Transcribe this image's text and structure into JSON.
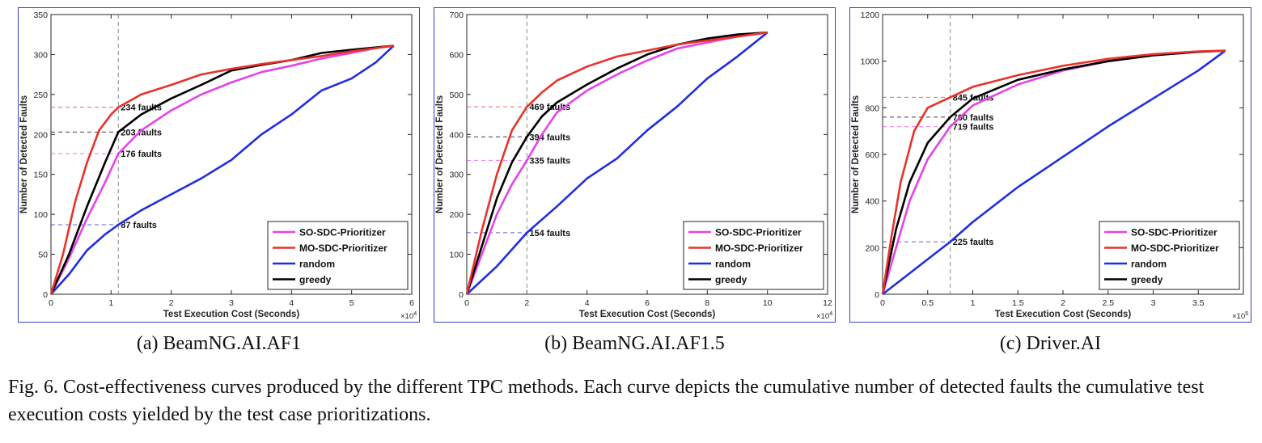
{
  "caption": {
    "label": "Fig. 6.",
    "text": "Cost-effectiveness curves produced by the different TPC methods. Each curve depicts the cumulative number of detected faults the cumulative test execution costs yielded by the test case prioritizations."
  },
  "colors": {
    "SO-SDC-Prioritizer": "#e443e9",
    "MO-SDC-Prioritizer": "#e8322b",
    "random": "#1f2fe0",
    "greedy": "#000000",
    "frame": "#3b3fbf"
  },
  "chart_data": [
    {
      "type": "line",
      "caption": "(a) BeamNG.AI.AF1",
      "xlabel": "Test Execution Cost (Seconds)",
      "ylabel": "Number of Detected Faults",
      "x_exponent": "×10^4",
      "xlim": [
        0,
        6
      ],
      "ylim": [
        0,
        350
      ],
      "xticks": [
        0,
        1,
        2,
        3,
        4,
        5,
        6
      ],
      "yticks": [
        0,
        50,
        100,
        150,
        200,
        250,
        300,
        350
      ],
      "grid": false,
      "legend_position": "bottom-right",
      "cutoff_x": 1.12,
      "series": [
        {
          "name": "SO-SDC-Prioritizer",
          "points": [
            [
              0,
              0
            ],
            [
              0.3,
              45
            ],
            [
              0.6,
              95
            ],
            [
              0.9,
              140
            ],
            [
              1.12,
              176
            ],
            [
              1.5,
              205
            ],
            [
              2.0,
              230
            ],
            [
              2.5,
              250
            ],
            [
              3.0,
              265
            ],
            [
              3.5,
              278
            ],
            [
              4.0,
              286
            ],
            [
              4.5,
              295
            ],
            [
              5.0,
              302
            ],
            [
              5.4,
              308
            ],
            [
              5.7,
              311
            ]
          ]
        },
        {
          "name": "MO-SDC-Prioritizer",
          "points": [
            [
              0,
              0
            ],
            [
              0.2,
              50
            ],
            [
              0.4,
              115
            ],
            [
              0.6,
              165
            ],
            [
              0.8,
              205
            ],
            [
              1.0,
              225
            ],
            [
              1.12,
              234
            ],
            [
              1.5,
              250
            ],
            [
              2.0,
              262
            ],
            [
              2.5,
              275
            ],
            [
              3.0,
              282
            ],
            [
              3.5,
              288
            ],
            [
              4.0,
              293
            ],
            [
              4.5,
              298
            ],
            [
              5.0,
              304
            ],
            [
              5.7,
              311
            ]
          ]
        },
        {
          "name": "random",
          "points": [
            [
              0,
              0
            ],
            [
              0.3,
              25
            ],
            [
              0.6,
              55
            ],
            [
              0.9,
              75
            ],
            [
              1.12,
              87
            ],
            [
              1.5,
              105
            ],
            [
              2.0,
              125
            ],
            [
              2.5,
              145
            ],
            [
              3.0,
              168
            ],
            [
              3.5,
              200
            ],
            [
              4.0,
              225
            ],
            [
              4.5,
              255
            ],
            [
              5.0,
              270
            ],
            [
              5.4,
              290
            ],
            [
              5.7,
              311
            ]
          ]
        },
        {
          "name": "greedy",
          "points": [
            [
              0,
              0
            ],
            [
              0.3,
              50
            ],
            [
              0.6,
              110
            ],
            [
              0.9,
              165
            ],
            [
              1.12,
              203
            ],
            [
              1.5,
              225
            ],
            [
              2.0,
              245
            ],
            [
              2.5,
              262
            ],
            [
              3.0,
              280
            ],
            [
              3.5,
              287
            ],
            [
              4.0,
              293
            ],
            [
              4.5,
              302
            ],
            [
              5.0,
              306
            ],
            [
              5.7,
              311
            ]
          ]
        }
      ],
      "annotations": [
        {
          "series": "MO-SDC-Prioritizer",
          "y": 234,
          "text": "234 faults"
        },
        {
          "series": "greedy",
          "y": 203,
          "text": "203 faults"
        },
        {
          "series": "SO-SDC-Prioritizer",
          "y": 176,
          "text": "176 faults"
        },
        {
          "series": "random",
          "y": 87,
          "text": "87 faults"
        }
      ]
    },
    {
      "type": "line",
      "caption": "(b) BeamNG.AI.AF1.5",
      "xlabel": "Test Execution Cost (Seconds)",
      "ylabel": "Number of Detected Faults",
      "x_exponent": "×10^4",
      "xlim": [
        0,
        12
      ],
      "ylim": [
        0,
        700
      ],
      "xticks": [
        0,
        2,
        4,
        6,
        8,
        10,
        12
      ],
      "yticks": [
        0,
        100,
        200,
        300,
        400,
        500,
        600,
        700
      ],
      "grid": false,
      "legend_position": "bottom-right",
      "cutoff_x": 2.0,
      "series": [
        {
          "name": "SO-SDC-Prioritizer",
          "points": [
            [
              0,
              0
            ],
            [
              0.5,
              100
            ],
            [
              1.0,
              200
            ],
            [
              1.5,
              275
            ],
            [
              2.0,
              335
            ],
            [
              2.5,
              400
            ],
            [
              3.0,
              455
            ],
            [
              4.0,
              510
            ],
            [
              5.0,
              550
            ],
            [
              6.0,
              585
            ],
            [
              7.0,
              615
            ],
            [
              8.0,
              630
            ],
            [
              9.0,
              645
            ],
            [
              10.0,
              655
            ]
          ]
        },
        {
          "name": "MO-SDC-Prioritizer",
          "points": [
            [
              0,
              0
            ],
            [
              0.5,
              160
            ],
            [
              1.0,
              300
            ],
            [
              1.5,
              410
            ],
            [
              2.0,
              469
            ],
            [
              2.5,
              505
            ],
            [
              3.0,
              535
            ],
            [
              4.0,
              570
            ],
            [
              5.0,
              595
            ],
            [
              6.0,
              610
            ],
            [
              7.0,
              625
            ],
            [
              8.0,
              635
            ],
            [
              9.0,
              645
            ],
            [
              10.0,
              655
            ]
          ]
        },
        {
          "name": "random",
          "points": [
            [
              0,
              0
            ],
            [
              1.0,
              70
            ],
            [
              2.0,
              154
            ],
            [
              3.0,
              220
            ],
            [
              4.0,
              290
            ],
            [
              5.0,
              340
            ],
            [
              6.0,
              410
            ],
            [
              7.0,
              470
            ],
            [
              8.0,
              540
            ],
            [
              9.0,
              595
            ],
            [
              10.0,
              655
            ]
          ]
        },
        {
          "name": "greedy",
          "points": [
            [
              0,
              0
            ],
            [
              0.5,
              120
            ],
            [
              1.0,
              240
            ],
            [
              1.5,
              330
            ],
            [
              2.0,
              394
            ],
            [
              2.5,
              445
            ],
            [
              3.0,
              480
            ],
            [
              4.0,
              525
            ],
            [
              5.0,
              565
            ],
            [
              6.0,
              600
            ],
            [
              7.0,
              625
            ],
            [
              8.0,
              640
            ],
            [
              9.0,
              650
            ],
            [
              10.0,
              655
            ]
          ]
        }
      ],
      "annotations": [
        {
          "series": "MO-SDC-Prioritizer",
          "y": 469,
          "text": "469 faults"
        },
        {
          "series": "greedy",
          "y": 394,
          "text": "394 faults"
        },
        {
          "series": "SO-SDC-Prioritizer",
          "y": 335,
          "text": "335 faults"
        },
        {
          "series": "random",
          "y": 154,
          "text": "154 faults"
        }
      ]
    },
    {
      "type": "line",
      "caption": "(c) Driver.AI",
      "xlabel": "Test Execution Cost (Seconds)",
      "ylabel": "Number of Detected Faults",
      "x_exponent": "×10^5",
      "xlim": [
        0,
        4
      ],
      "ylim": [
        0,
        1200
      ],
      "xticks": [
        0,
        0.5,
        1,
        1.5,
        2,
        2.5,
        3,
        3.5
      ],
      "yticks": [
        0,
        200,
        400,
        600,
        800,
        1000,
        1200
      ],
      "grid": false,
      "legend_position": "bottom-right",
      "cutoff_x": 0.75,
      "series": [
        {
          "name": "SO-SDC-Prioritizer",
          "points": [
            [
              0,
              0
            ],
            [
              0.15,
              200
            ],
            [
              0.3,
              400
            ],
            [
              0.5,
              580
            ],
            [
              0.75,
              719
            ],
            [
              1.0,
              810
            ],
            [
              1.5,
              900
            ],
            [
              2.0,
              960
            ],
            [
              2.5,
              1000
            ],
            [
              3.0,
              1025
            ],
            [
              3.5,
              1040
            ],
            [
              3.8,
              1045
            ]
          ]
        },
        {
          "name": "MO-SDC-Prioritizer",
          "points": [
            [
              0,
              0
            ],
            [
              0.1,
              250
            ],
            [
              0.2,
              480
            ],
            [
              0.35,
              700
            ],
            [
              0.5,
              800
            ],
            [
              0.75,
              845
            ],
            [
              1.0,
              890
            ],
            [
              1.5,
              940
            ],
            [
              2.0,
              980
            ],
            [
              2.5,
              1010
            ],
            [
              3.0,
              1030
            ],
            [
              3.5,
              1042
            ],
            [
              3.8,
              1045
            ]
          ]
        },
        {
          "name": "random",
          "points": [
            [
              0,
              0
            ],
            [
              0.3,
              90
            ],
            [
              0.75,
              225
            ],
            [
              1.0,
              310
            ],
            [
              1.5,
              460
            ],
            [
              2.0,
              590
            ],
            [
              2.5,
              720
            ],
            [
              3.0,
              840
            ],
            [
              3.5,
              960
            ],
            [
              3.8,
              1045
            ]
          ]
        },
        {
          "name": "greedy",
          "points": [
            [
              0,
              0
            ],
            [
              0.15,
              280
            ],
            [
              0.3,
              480
            ],
            [
              0.5,
              650
            ],
            [
              0.75,
              760
            ],
            [
              1.0,
              840
            ],
            [
              1.5,
              920
            ],
            [
              2.0,
              965
            ],
            [
              2.5,
              1000
            ],
            [
              3.0,
              1025
            ],
            [
              3.5,
              1040
            ],
            [
              3.8,
              1045
            ]
          ]
        }
      ],
      "annotations": [
        {
          "series": "MO-SDC-Prioritizer",
          "y": 845,
          "text": "845 faults"
        },
        {
          "series": "greedy",
          "y": 760,
          "text": "760 faults"
        },
        {
          "series": "SO-SDC-Prioritizer",
          "y": 719,
          "text": "719 faults"
        },
        {
          "series": "random",
          "y": 225,
          "text": "225 faults"
        }
      ]
    }
  ]
}
